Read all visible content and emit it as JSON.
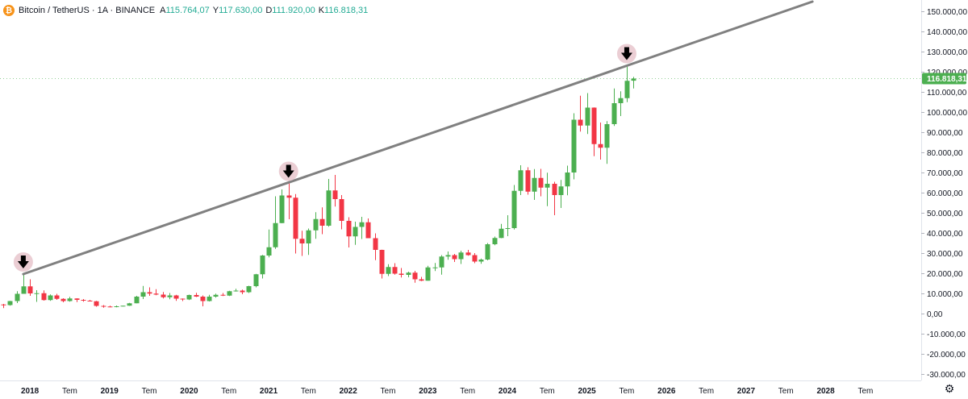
{
  "header": {
    "symbol_title": "Bitcoin / TetherUS · 1A · BINANCE",
    "logo_glyph": "₿",
    "ohlc": [
      {
        "key": "A",
        "value": "115.764,07"
      },
      {
        "key": "Y",
        "value": "117.630,00"
      },
      {
        "key": "D",
        "value": "111.920,00"
      },
      {
        "key": "K",
        "value": "116.818,31"
      }
    ]
  },
  "colors": {
    "up": "#4caf50",
    "down": "#f23645",
    "trendline": "#808080",
    "price_tag": "#4caf50",
    "marker_halo": "#e8c6cc",
    "marker_arrow": "#000000"
  },
  "price_tag": {
    "value": 116818.31,
    "label": "116.818,31"
  },
  "settings_icon": "gear-icon",
  "chart_data": {
    "type": "candlestick",
    "timeframe": "1 month",
    "y_axis": {
      "range": [
        -33000,
        155000
      ],
      "ticks": [
        150000,
        140000,
        130000,
        120000,
        110000,
        100000,
        90000,
        80000,
        70000,
        60000,
        50000,
        40000,
        30000,
        20000,
        10000,
        0,
        -10000,
        -20000,
        -30000
      ],
      "tick_labels": [
        "150.000,00",
        "140.000,00",
        "130.000,00",
        "120.000,00",
        "110.000,00",
        "100.000,00",
        "90.000,00",
        "80.000,00",
        "70.000,00",
        "60.000,00",
        "50.000,00",
        "40.000,00",
        "30.000,00",
        "20.000,00",
        "10.000,00",
        "0,00",
        "-10.000,00",
        "-20.000,00",
        "-30.000,00"
      ]
    },
    "x_axis": {
      "start": "2017-08",
      "end": "2028-12",
      "labels": [
        {
          "t": "2018-01",
          "text": "2018",
          "bold": true
        },
        {
          "t": "2018-07",
          "text": "Tem",
          "bold": false
        },
        {
          "t": "2019-01",
          "text": "2019",
          "bold": true
        },
        {
          "t": "2019-07",
          "text": "Tem",
          "bold": false
        },
        {
          "t": "2020-01",
          "text": "2020",
          "bold": true
        },
        {
          "t": "2020-07",
          "text": "Tem",
          "bold": false
        },
        {
          "t": "2021-01",
          "text": "2021",
          "bold": true
        },
        {
          "t": "2021-07",
          "text": "Tem",
          "bold": false
        },
        {
          "t": "2022-01",
          "text": "2022",
          "bold": true
        },
        {
          "t": "2022-07",
          "text": "Tem",
          "bold": false
        },
        {
          "t": "2023-01",
          "text": "2023",
          "bold": true
        },
        {
          "t": "2023-07",
          "text": "Tem",
          "bold": false
        },
        {
          "t": "2024-01",
          "text": "2024",
          "bold": true
        },
        {
          "t": "2024-07",
          "text": "Tem",
          "bold": false
        },
        {
          "t": "2025-01",
          "text": "2025",
          "bold": true
        },
        {
          "t": "2025-07",
          "text": "Tem",
          "bold": false
        },
        {
          "t": "2026-01",
          "text": "2026",
          "bold": true
        },
        {
          "t": "2026-07",
          "text": "Tem",
          "bold": false
        },
        {
          "t": "2027-01",
          "text": "2027",
          "bold": true
        },
        {
          "t": "2027-07",
          "text": "Tem",
          "bold": false
        },
        {
          "t": "2028-01",
          "text": "2028",
          "bold": true
        },
        {
          "t": "2028-07",
          "text": "Tem",
          "bold": false
        }
      ]
    },
    "candles": [
      {
        "t": "2017-08",
        "o": 4300,
        "h": 4900,
        "l": 3000,
        "c": 4700
      },
      {
        "t": "2017-09",
        "o": 4700,
        "h": 5000,
        "l": 2900,
        "c": 4400
      },
      {
        "t": "2017-10",
        "o": 4400,
        "h": 6500,
        "l": 4100,
        "c": 6400
      },
      {
        "t": "2017-11",
        "o": 6400,
        "h": 11300,
        "l": 5400,
        "c": 10000
      },
      {
        "t": "2017-12",
        "o": 10000,
        "h": 19800,
        "l": 10000,
        "c": 13700
      },
      {
        "t": "2018-01",
        "o": 13700,
        "h": 17200,
        "l": 9000,
        "c": 10200
      },
      {
        "t": "2018-02",
        "o": 10200,
        "h": 11800,
        "l": 6000,
        "c": 10300
      },
      {
        "t": "2018-03",
        "o": 10300,
        "h": 11700,
        "l": 6600,
        "c": 6900
      },
      {
        "t": "2018-04",
        "o": 6900,
        "h": 9700,
        "l": 6500,
        "c": 9200
      },
      {
        "t": "2018-05",
        "o": 9200,
        "h": 10000,
        "l": 7000,
        "c": 7500
      },
      {
        "t": "2018-06",
        "o": 7500,
        "h": 7800,
        "l": 5800,
        "c": 6400
      },
      {
        "t": "2018-07",
        "o": 6400,
        "h": 8500,
        "l": 6100,
        "c": 7700
      },
      {
        "t": "2018-08",
        "o": 7700,
        "h": 7800,
        "l": 5900,
        "c": 7000
      },
      {
        "t": "2018-09",
        "o": 7000,
        "h": 7400,
        "l": 6100,
        "c": 6600
      },
      {
        "t": "2018-10",
        "o": 6600,
        "h": 7000,
        "l": 6200,
        "c": 6300
      },
      {
        "t": "2018-11",
        "o": 6300,
        "h": 6500,
        "l": 3600,
        "c": 4000
      },
      {
        "t": "2018-12",
        "o": 4000,
        "h": 4400,
        "l": 3100,
        "c": 3700
      },
      {
        "t": "2019-01",
        "o": 3700,
        "h": 4100,
        "l": 3300,
        "c": 3400
      },
      {
        "t": "2019-02",
        "o": 3400,
        "h": 4200,
        "l": 3300,
        "c": 3800
      },
      {
        "t": "2019-03",
        "o": 3800,
        "h": 4100,
        "l": 3700,
        "c": 4100
      },
      {
        "t": "2019-04",
        "o": 4100,
        "h": 5500,
        "l": 4000,
        "c": 5300
      },
      {
        "t": "2019-05",
        "o": 5300,
        "h": 9000,
        "l": 5300,
        "c": 8600
      },
      {
        "t": "2019-06",
        "o": 8600,
        "h": 13900,
        "l": 7400,
        "c": 10800
      },
      {
        "t": "2019-07",
        "o": 10800,
        "h": 13200,
        "l": 9000,
        "c": 10100
      },
      {
        "t": "2019-08",
        "o": 10100,
        "h": 12300,
        "l": 9300,
        "c": 9600
      },
      {
        "t": "2019-09",
        "o": 9600,
        "h": 10900,
        "l": 7700,
        "c": 8300
      },
      {
        "t": "2019-10",
        "o": 8300,
        "h": 10400,
        "l": 7300,
        "c": 9200
      },
      {
        "t": "2019-11",
        "o": 9200,
        "h": 9500,
        "l": 6500,
        "c": 7600
      },
      {
        "t": "2019-12",
        "o": 7600,
        "h": 7700,
        "l": 6400,
        "c": 7200
      },
      {
        "t": "2020-01",
        "o": 7200,
        "h": 9600,
        "l": 6900,
        "c": 9400
      },
      {
        "t": "2020-02",
        "o": 9400,
        "h": 10500,
        "l": 8400,
        "c": 8600
      },
      {
        "t": "2020-03",
        "o": 8600,
        "h": 9200,
        "l": 3800,
        "c": 6400
      },
      {
        "t": "2020-04",
        "o": 6400,
        "h": 9500,
        "l": 6200,
        "c": 8600
      },
      {
        "t": "2020-05",
        "o": 8600,
        "h": 10100,
        "l": 8100,
        "c": 9500
      },
      {
        "t": "2020-06",
        "o": 9500,
        "h": 10400,
        "l": 8900,
        "c": 9100
      },
      {
        "t": "2020-07",
        "o": 9100,
        "h": 11500,
        "l": 8900,
        "c": 11300
      },
      {
        "t": "2020-08",
        "o": 11300,
        "h": 12500,
        "l": 11100,
        "c": 11600
      },
      {
        "t": "2020-09",
        "o": 11600,
        "h": 12100,
        "l": 9800,
        "c": 10800
      },
      {
        "t": "2020-10",
        "o": 10800,
        "h": 14000,
        "l": 10400,
        "c": 13800
      },
      {
        "t": "2020-11",
        "o": 13800,
        "h": 19900,
        "l": 13200,
        "c": 19700
      },
      {
        "t": "2020-12",
        "o": 19700,
        "h": 29300,
        "l": 17600,
        "c": 29000
      },
      {
        "t": "2021-01",
        "o": 29000,
        "h": 41900,
        "l": 28100,
        "c": 33100
      },
      {
        "t": "2021-02",
        "o": 33100,
        "h": 58400,
        "l": 32300,
        "c": 45100
      },
      {
        "t": "2021-03",
        "o": 45100,
        "h": 61800,
        "l": 45000,
        "c": 58800
      },
      {
        "t": "2021-04",
        "o": 58800,
        "h": 64800,
        "l": 47000,
        "c": 57700
      },
      {
        "t": "2021-05",
        "o": 57700,
        "h": 59500,
        "l": 30000,
        "c": 37300
      },
      {
        "t": "2021-06",
        "o": 37300,
        "h": 41300,
        "l": 28800,
        "c": 35000
      },
      {
        "t": "2021-07",
        "o": 35000,
        "h": 42400,
        "l": 29300,
        "c": 41500
      },
      {
        "t": "2021-08",
        "o": 41500,
        "h": 50500,
        "l": 37300,
        "c": 47100
      },
      {
        "t": "2021-09",
        "o": 47100,
        "h": 52900,
        "l": 39600,
        "c": 43800
      },
      {
        "t": "2021-10",
        "o": 43800,
        "h": 67000,
        "l": 43300,
        "c": 61300
      },
      {
        "t": "2021-11",
        "o": 61300,
        "h": 69000,
        "l": 53300,
        "c": 57000
      },
      {
        "t": "2021-12",
        "o": 57000,
        "h": 59000,
        "l": 42000,
        "c": 46200
      },
      {
        "t": "2022-01",
        "o": 46200,
        "h": 48000,
        "l": 33000,
        "c": 38500
      },
      {
        "t": "2022-02",
        "o": 38500,
        "h": 45800,
        "l": 34300,
        "c": 43200
      },
      {
        "t": "2022-03",
        "o": 43200,
        "h": 48200,
        "l": 37200,
        "c": 45500
      },
      {
        "t": "2022-04",
        "o": 45500,
        "h": 47400,
        "l": 37600,
        "c": 37600
      },
      {
        "t": "2022-05",
        "o": 37600,
        "h": 40000,
        "l": 26700,
        "c": 31800
      },
      {
        "t": "2022-06",
        "o": 31800,
        "h": 31900,
        "l": 17600,
        "c": 19900
      },
      {
        "t": "2022-07",
        "o": 19900,
        "h": 24700,
        "l": 18800,
        "c": 23300
      },
      {
        "t": "2022-08",
        "o": 23300,
        "h": 25200,
        "l": 19500,
        "c": 20000
      },
      {
        "t": "2022-09",
        "o": 20000,
        "h": 22800,
        "l": 18100,
        "c": 19400
      },
      {
        "t": "2022-10",
        "o": 19400,
        "h": 21000,
        "l": 18200,
        "c": 20500
      },
      {
        "t": "2022-11",
        "o": 20500,
        "h": 21400,
        "l": 15500,
        "c": 17200
      },
      {
        "t": "2022-12",
        "o": 17200,
        "h": 18400,
        "l": 16300,
        "c": 16500
      },
      {
        "t": "2023-01",
        "o": 16500,
        "h": 23900,
        "l": 16500,
        "c": 23100
      },
      {
        "t": "2023-02",
        "o": 23100,
        "h": 25300,
        "l": 21300,
        "c": 23100
      },
      {
        "t": "2023-03",
        "o": 23100,
        "h": 29200,
        "l": 19500,
        "c": 28500
      },
      {
        "t": "2023-04",
        "o": 28500,
        "h": 31000,
        "l": 26900,
        "c": 29200
      },
      {
        "t": "2023-05",
        "o": 29200,
        "h": 29800,
        "l": 25800,
        "c": 27200
      },
      {
        "t": "2023-06",
        "o": 27200,
        "h": 31400,
        "l": 24800,
        "c": 30500
      },
      {
        "t": "2023-07",
        "o": 30500,
        "h": 31800,
        "l": 28900,
        "c": 29200
      },
      {
        "t": "2023-08",
        "o": 29200,
        "h": 30200,
        "l": 25200,
        "c": 26000
      },
      {
        "t": "2023-09",
        "o": 26000,
        "h": 27500,
        "l": 24900,
        "c": 27000
      },
      {
        "t": "2023-10",
        "o": 27000,
        "h": 35200,
        "l": 26600,
        "c": 34600
      },
      {
        "t": "2023-11",
        "o": 34600,
        "h": 38400,
        "l": 34100,
        "c": 37700
      },
      {
        "t": "2023-12",
        "o": 37700,
        "h": 44700,
        "l": 37600,
        "c": 42300
      },
      {
        "t": "2024-01",
        "o": 42300,
        "h": 49000,
        "l": 38600,
        "c": 42600
      },
      {
        "t": "2024-02",
        "o": 42600,
        "h": 64000,
        "l": 41900,
        "c": 61100
      },
      {
        "t": "2024-03",
        "o": 61100,
        "h": 73800,
        "l": 59000,
        "c": 71300
      },
      {
        "t": "2024-04",
        "o": 71300,
        "h": 72800,
        "l": 59200,
        "c": 60700
      },
      {
        "t": "2024-05",
        "o": 60700,
        "h": 71900,
        "l": 56600,
        "c": 67500
      },
      {
        "t": "2024-06",
        "o": 67500,
        "h": 72000,
        "l": 58400,
        "c": 62700
      },
      {
        "t": "2024-07",
        "o": 62700,
        "h": 70100,
        "l": 53500,
        "c": 64600
      },
      {
        "t": "2024-08",
        "o": 64600,
        "h": 65600,
        "l": 49000,
        "c": 59000
      },
      {
        "t": "2024-09",
        "o": 59000,
        "h": 66500,
        "l": 52600,
        "c": 63300
      },
      {
        "t": "2024-10",
        "o": 63300,
        "h": 73600,
        "l": 58900,
        "c": 70200
      },
      {
        "t": "2024-11",
        "o": 70200,
        "h": 99600,
        "l": 66800,
        "c": 96400
      },
      {
        "t": "2024-12",
        "o": 96400,
        "h": 108300,
        "l": 90500,
        "c": 93500
      },
      {
        "t": "2025-01",
        "o": 93500,
        "h": 109600,
        "l": 89300,
        "c": 102400
      },
      {
        "t": "2025-02",
        "o": 102400,
        "h": 102500,
        "l": 78300,
        "c": 84300
      },
      {
        "t": "2025-03",
        "o": 84300,
        "h": 95000,
        "l": 76600,
        "c": 82500
      },
      {
        "t": "2025-04",
        "o": 82500,
        "h": 95700,
        "l": 74500,
        "c": 94200
      },
      {
        "t": "2025-05",
        "o": 94200,
        "h": 111900,
        "l": 93300,
        "c": 104600
      },
      {
        "t": "2025-06",
        "o": 104600,
        "h": 110500,
        "l": 98200,
        "c": 107100
      },
      {
        "t": "2025-07",
        "o": 107100,
        "h": 123200,
        "l": 105100,
        "c": 115700
      },
      {
        "t": "2025-08",
        "o": 115764.07,
        "h": 117630,
        "l": 111920,
        "c": 116818.31
      }
    ],
    "trendline": {
      "p1": {
        "t": "2017-12",
        "v": 19800
      },
      "p2": {
        "t": "2027-11",
        "v": 155000
      }
    },
    "markers": [
      {
        "t": "2017-12",
        "v": 19800,
        "label": "down-arrow-marker"
      },
      {
        "t": "2021-04",
        "v": 64800,
        "label": "down-arrow-marker"
      },
      {
        "t": "2025-07",
        "v": 123200,
        "label": "down-arrow-marker"
      }
    ]
  }
}
